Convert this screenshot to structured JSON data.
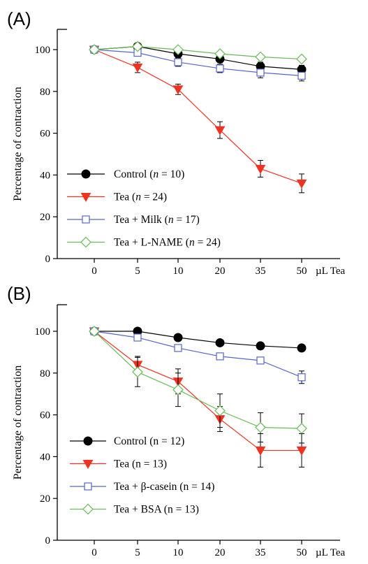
{
  "chart_data": [
    {
      "type": "line",
      "panel_label": "(A)",
      "ylabel": "Percentage of contraction",
      "xunit": "µL Tea",
      "x": [
        "0",
        "5",
        "10",
        "20",
        "35",
        "50"
      ],
      "ylim": [
        0,
        100
      ],
      "yticks": [
        "0",
        "20",
        "40",
        "60",
        "80",
        "100"
      ],
      "grid": false,
      "legend_position": "bottom-left",
      "series": [
        {
          "legend_main": "Control (",
          "legend_n": "n",
          "legend_rest": " = 10)",
          "color": "#000000",
          "marker": "circle",
          "fill": "#000000",
          "values": [
            100,
            101.5,
            98,
            95.5,
            92,
            90.5
          ],
          "errors": [
            0,
            0,
            1.5,
            1.5,
            2,
            2
          ]
        },
        {
          "legend_main": "Tea  (",
          "legend_n": "n",
          "legend_rest": " = 24)",
          "color": "#ee3322",
          "marker": "triangle-down",
          "fill": "#ee3322",
          "values": [
            100,
            91.5,
            81,
            61.5,
            43,
            36
          ],
          "errors": [
            0,
            2.5,
            2.5,
            4,
            4,
            4.5
          ]
        },
        {
          "legend_main": "Tea + Milk (",
          "legend_n": "n",
          "legend_rest": " = 17)",
          "color": "#5566cc",
          "marker": "square",
          "fill": "#ffffff",
          "values": [
            100,
            98.5,
            94,
            91,
            89,
            87.5
          ],
          "errors": [
            0,
            0,
            2,
            2,
            2.5,
            2.5
          ]
        },
        {
          "legend_main": "Tea + L-NAME (",
          "legend_n": "n",
          "legend_rest": " = 24)",
          "color": "#66bb55",
          "marker": "diamond",
          "fill": "#ffffff",
          "values": [
            100,
            101.5,
            100,
            98,
            96.5,
            95.5
          ],
          "errors": [
            0,
            0,
            0,
            0,
            0,
            0
          ]
        }
      ]
    },
    {
      "type": "line",
      "panel_label": "(B)",
      "ylabel": "Percentage of contraction",
      "xunit": "µL Tea",
      "x": [
        "0",
        "5",
        "10",
        "20",
        "35",
        "50"
      ],
      "ylim": [
        0,
        100
      ],
      "yticks": [
        "0",
        "20",
        "40",
        "60",
        "80",
        "100"
      ],
      "grid": false,
      "legend_position": "bottom-left",
      "series": [
        {
          "legend_main": "Control (n = 12)",
          "legend_n": "",
          "legend_rest": "",
          "color": "#000000",
          "marker": "circle",
          "fill": "#000000",
          "values": [
            100,
            100,
            97,
            94.5,
            93,
            92
          ],
          "errors": [
            0,
            0,
            0,
            0,
            0,
            0
          ]
        },
        {
          "legend_main": "Tea  (n = 13)",
          "legend_n": "",
          "legend_rest": "",
          "color": "#ee3322",
          "marker": "triangle-down",
          "fill": "#ee3322",
          "values": [
            100,
            84,
            76,
            58,
            43,
            43
          ],
          "errors": [
            0,
            4,
            6,
            6,
            8,
            8
          ]
        },
        {
          "legend_main": "Tea + β-casein (n = 14)",
          "legend_n": "",
          "legend_rest": "",
          "color": "#5566cc",
          "marker": "square",
          "fill": "#ffffff",
          "values": [
            100,
            97,
            92,
            88,
            86,
            78
          ],
          "errors": [
            0,
            0,
            0,
            0,
            0,
            3
          ]
        },
        {
          "legend_main": "Tea + BSA (n = 13)",
          "legend_n": "",
          "legend_rest": "",
          "color": "#66bb55",
          "marker": "diamond",
          "fill": "#ffffff",
          "values": [
            100,
            80.5,
            72,
            62,
            54,
            53.5
          ],
          "errors": [
            0,
            7,
            8,
            8,
            7,
            7
          ]
        }
      ]
    }
  ]
}
